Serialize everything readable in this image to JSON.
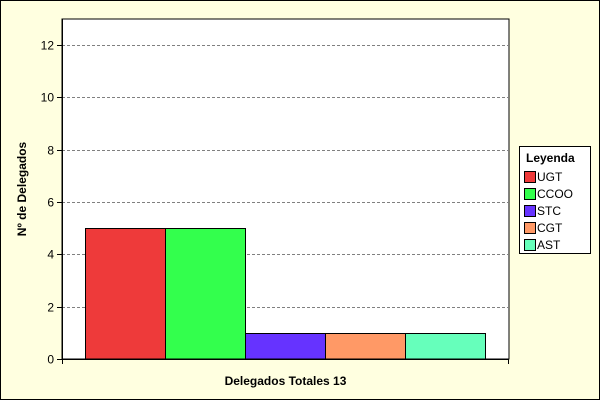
{
  "chart_data": {
    "type": "bar",
    "title": "",
    "xlabel": "Delegados Totales 13",
    "ylabel": "Nº de Delegados",
    "ylim": [
      0,
      13
    ],
    "yticks": [
      0,
      2,
      4,
      6,
      8,
      10,
      12
    ],
    "grid": true,
    "legend_position": "right",
    "legend_title": "Leyenda",
    "series": [
      {
        "name": "UGT",
        "value": 5,
        "color": "#ee3a3a"
      },
      {
        "name": "CCOO",
        "value": 5,
        "color": "#33ff4d"
      },
      {
        "name": "STC",
        "value": 1,
        "color": "#6633ff"
      },
      {
        "name": "CGT",
        "value": 1,
        "color": "#ff9966"
      },
      {
        "name": "AST",
        "value": 1,
        "color": "#66ffbb"
      }
    ]
  },
  "style": {
    "background": "#ffffe0",
    "plot_background": "#ffffff"
  }
}
